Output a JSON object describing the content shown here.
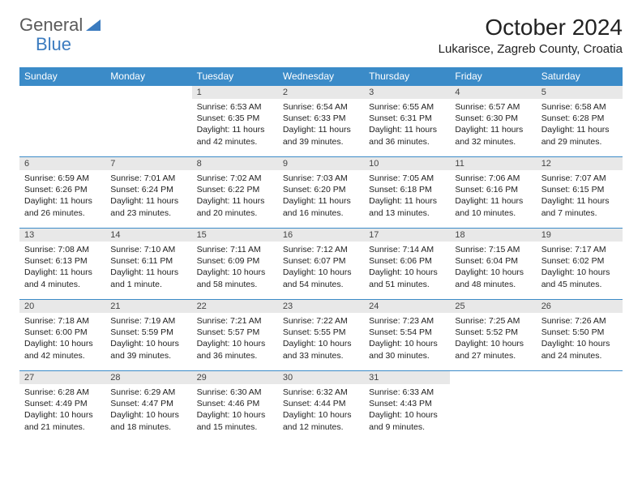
{
  "logo": {
    "text1": "General",
    "text2": "Blue"
  },
  "title": "October 2024",
  "subtitle": "Lukarisce, Zagreb County, Croatia",
  "colors": {
    "header_bg": "#3b8bc8",
    "header_fg": "#ffffff",
    "daynum_bg": "#e8e8e8",
    "row_border": "#3b8bc8",
    "logo_gray": "#5a5a5a",
    "logo_blue": "#3b7bbf"
  },
  "day_headers": [
    "Sunday",
    "Monday",
    "Tuesday",
    "Wednesday",
    "Thursday",
    "Friday",
    "Saturday"
  ],
  "weeks": [
    [
      {
        "num": "",
        "empty": true
      },
      {
        "num": "",
        "empty": true
      },
      {
        "num": "1",
        "sunrise": "Sunrise: 6:53 AM",
        "sunset": "Sunset: 6:35 PM",
        "daylight": "Daylight: 11 hours and 42 minutes."
      },
      {
        "num": "2",
        "sunrise": "Sunrise: 6:54 AM",
        "sunset": "Sunset: 6:33 PM",
        "daylight": "Daylight: 11 hours and 39 minutes."
      },
      {
        "num": "3",
        "sunrise": "Sunrise: 6:55 AM",
        "sunset": "Sunset: 6:31 PM",
        "daylight": "Daylight: 11 hours and 36 minutes."
      },
      {
        "num": "4",
        "sunrise": "Sunrise: 6:57 AM",
        "sunset": "Sunset: 6:30 PM",
        "daylight": "Daylight: 11 hours and 32 minutes."
      },
      {
        "num": "5",
        "sunrise": "Sunrise: 6:58 AM",
        "sunset": "Sunset: 6:28 PM",
        "daylight": "Daylight: 11 hours and 29 minutes."
      }
    ],
    [
      {
        "num": "6",
        "sunrise": "Sunrise: 6:59 AM",
        "sunset": "Sunset: 6:26 PM",
        "daylight": "Daylight: 11 hours and 26 minutes."
      },
      {
        "num": "7",
        "sunrise": "Sunrise: 7:01 AM",
        "sunset": "Sunset: 6:24 PM",
        "daylight": "Daylight: 11 hours and 23 minutes."
      },
      {
        "num": "8",
        "sunrise": "Sunrise: 7:02 AM",
        "sunset": "Sunset: 6:22 PM",
        "daylight": "Daylight: 11 hours and 20 minutes."
      },
      {
        "num": "9",
        "sunrise": "Sunrise: 7:03 AM",
        "sunset": "Sunset: 6:20 PM",
        "daylight": "Daylight: 11 hours and 16 minutes."
      },
      {
        "num": "10",
        "sunrise": "Sunrise: 7:05 AM",
        "sunset": "Sunset: 6:18 PM",
        "daylight": "Daylight: 11 hours and 13 minutes."
      },
      {
        "num": "11",
        "sunrise": "Sunrise: 7:06 AM",
        "sunset": "Sunset: 6:16 PM",
        "daylight": "Daylight: 11 hours and 10 minutes."
      },
      {
        "num": "12",
        "sunrise": "Sunrise: 7:07 AM",
        "sunset": "Sunset: 6:15 PM",
        "daylight": "Daylight: 11 hours and 7 minutes."
      }
    ],
    [
      {
        "num": "13",
        "sunrise": "Sunrise: 7:08 AM",
        "sunset": "Sunset: 6:13 PM",
        "daylight": "Daylight: 11 hours and 4 minutes."
      },
      {
        "num": "14",
        "sunrise": "Sunrise: 7:10 AM",
        "sunset": "Sunset: 6:11 PM",
        "daylight": "Daylight: 11 hours and 1 minute."
      },
      {
        "num": "15",
        "sunrise": "Sunrise: 7:11 AM",
        "sunset": "Sunset: 6:09 PM",
        "daylight": "Daylight: 10 hours and 58 minutes."
      },
      {
        "num": "16",
        "sunrise": "Sunrise: 7:12 AM",
        "sunset": "Sunset: 6:07 PM",
        "daylight": "Daylight: 10 hours and 54 minutes."
      },
      {
        "num": "17",
        "sunrise": "Sunrise: 7:14 AM",
        "sunset": "Sunset: 6:06 PM",
        "daylight": "Daylight: 10 hours and 51 minutes."
      },
      {
        "num": "18",
        "sunrise": "Sunrise: 7:15 AM",
        "sunset": "Sunset: 6:04 PM",
        "daylight": "Daylight: 10 hours and 48 minutes."
      },
      {
        "num": "19",
        "sunrise": "Sunrise: 7:17 AM",
        "sunset": "Sunset: 6:02 PM",
        "daylight": "Daylight: 10 hours and 45 minutes."
      }
    ],
    [
      {
        "num": "20",
        "sunrise": "Sunrise: 7:18 AM",
        "sunset": "Sunset: 6:00 PM",
        "daylight": "Daylight: 10 hours and 42 minutes."
      },
      {
        "num": "21",
        "sunrise": "Sunrise: 7:19 AM",
        "sunset": "Sunset: 5:59 PM",
        "daylight": "Daylight: 10 hours and 39 minutes."
      },
      {
        "num": "22",
        "sunrise": "Sunrise: 7:21 AM",
        "sunset": "Sunset: 5:57 PM",
        "daylight": "Daylight: 10 hours and 36 minutes."
      },
      {
        "num": "23",
        "sunrise": "Sunrise: 7:22 AM",
        "sunset": "Sunset: 5:55 PM",
        "daylight": "Daylight: 10 hours and 33 minutes."
      },
      {
        "num": "24",
        "sunrise": "Sunrise: 7:23 AM",
        "sunset": "Sunset: 5:54 PM",
        "daylight": "Daylight: 10 hours and 30 minutes."
      },
      {
        "num": "25",
        "sunrise": "Sunrise: 7:25 AM",
        "sunset": "Sunset: 5:52 PM",
        "daylight": "Daylight: 10 hours and 27 minutes."
      },
      {
        "num": "26",
        "sunrise": "Sunrise: 7:26 AM",
        "sunset": "Sunset: 5:50 PM",
        "daylight": "Daylight: 10 hours and 24 minutes."
      }
    ],
    [
      {
        "num": "27",
        "sunrise": "Sunrise: 6:28 AM",
        "sunset": "Sunset: 4:49 PM",
        "daylight": "Daylight: 10 hours and 21 minutes."
      },
      {
        "num": "28",
        "sunrise": "Sunrise: 6:29 AM",
        "sunset": "Sunset: 4:47 PM",
        "daylight": "Daylight: 10 hours and 18 minutes."
      },
      {
        "num": "29",
        "sunrise": "Sunrise: 6:30 AM",
        "sunset": "Sunset: 4:46 PM",
        "daylight": "Daylight: 10 hours and 15 minutes."
      },
      {
        "num": "30",
        "sunrise": "Sunrise: 6:32 AM",
        "sunset": "Sunset: 4:44 PM",
        "daylight": "Daylight: 10 hours and 12 minutes."
      },
      {
        "num": "31",
        "sunrise": "Sunrise: 6:33 AM",
        "sunset": "Sunset: 4:43 PM",
        "daylight": "Daylight: 10 hours and 9 minutes."
      },
      {
        "num": "",
        "empty": true
      },
      {
        "num": "",
        "empty": true
      }
    ]
  ]
}
